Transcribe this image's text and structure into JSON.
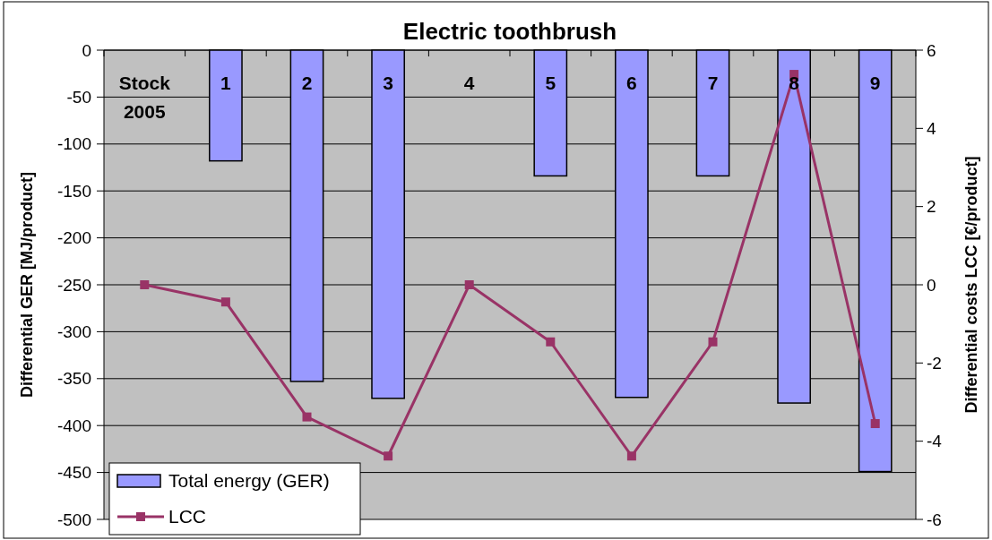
{
  "chart_data": {
    "type": "bar",
    "title": "Electric toothbrush",
    "ylabel": "Differential GER [MJ/product]",
    "y2label": "Differential costs LCC [€/product]",
    "categories": [
      "Stock 2005",
      "1",
      "2",
      "3",
      "4",
      "5",
      "6",
      "7",
      "8",
      "9"
    ],
    "series": [
      {
        "name": "Total energy (GER)",
        "color": "#9999ff",
        "values": [
          0,
          -118,
          -353,
          -371,
          0,
          -134,
          -370,
          -134,
          -376,
          -449
        ]
      },
      {
        "name": "LCC",
        "type": "line",
        "axis": "y2",
        "color": "#993366",
        "marker": "square",
        "values": [
          0,
          -0.44,
          -3.38,
          -4.38,
          0,
          -1.46,
          -4.38,
          -1.46,
          5.38,
          -3.55
        ]
      }
    ],
    "ylim": [
      -500,
      0
    ],
    "yticks": [
      0,
      -50,
      -100,
      -150,
      -200,
      -250,
      -300,
      -350,
      -400,
      -450,
      -500
    ],
    "y2lim": [
      -6,
      6
    ],
    "y2ticks": [
      -6,
      -4,
      -2,
      0,
      2,
      4,
      6
    ],
    "grid": "y",
    "legend": "bottom left"
  }
}
